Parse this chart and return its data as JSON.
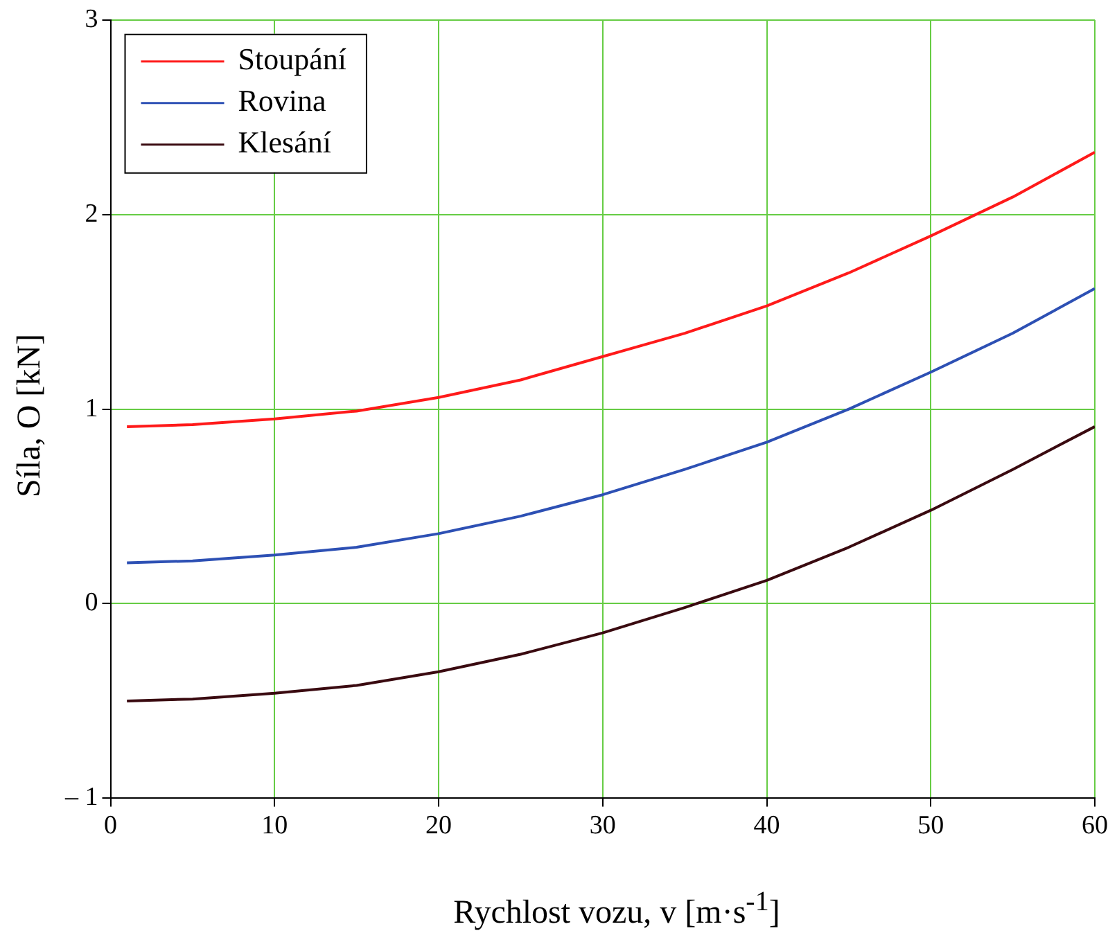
{
  "chart_data": {
    "type": "line",
    "xlabel": "Rychlost vozu, v [m·s$^{-1}$]",
    "ylabel": "Síla, O [kN]",
    "x": [
      1,
      5,
      10,
      15,
      20,
      25,
      30,
      35,
      40,
      45,
      50,
      55,
      60
    ],
    "series": [
      {
        "name": "Stoupání",
        "color": "#ff1a1a",
        "values": [
          0.91,
          0.92,
          0.95,
          0.99,
          1.06,
          1.15,
          1.27,
          1.39,
          1.53,
          1.7,
          1.89,
          2.09,
          2.32
        ]
      },
      {
        "name": "Rovina",
        "color": "#2d50b4",
        "values": [
          0.21,
          0.22,
          0.25,
          0.29,
          0.36,
          0.45,
          0.56,
          0.69,
          0.83,
          1.0,
          1.19,
          1.39,
          1.62
        ]
      },
      {
        "name": "Klesání",
        "color": "#3a0a10",
        "values": [
          -0.5,
          -0.49,
          -0.46,
          -0.42,
          -0.35,
          -0.26,
          -0.15,
          -0.02,
          0.12,
          0.29,
          0.48,
          0.69,
          0.91
        ]
      }
    ],
    "xlim": [
      0,
      60
    ],
    "xticks": [
      0,
      10,
      20,
      30,
      40,
      50,
      60
    ],
    "ylim": [
      -1,
      3
    ],
    "yticks": [
      {
        "value": -1,
        "label": "– 1"
      },
      0,
      1,
      2,
      3
    ],
    "grid": true,
    "legend": "top left",
    "marker": "none",
    "line_style": "solid"
  }
}
